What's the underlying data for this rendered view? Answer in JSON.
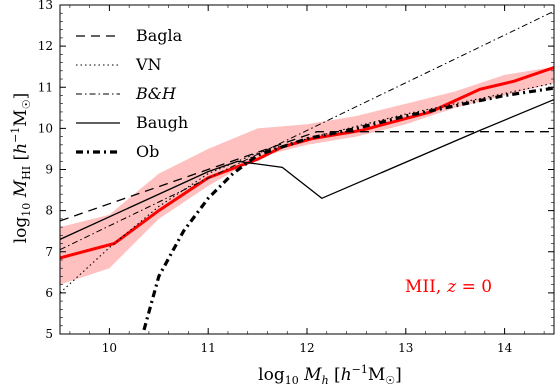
{
  "chart_data": {
    "type": "line",
    "title": "",
    "xlabel": "log10 Mh [h^-1 M☉]",
    "ylabel": "log10 MHI [h^-1 M☉]",
    "xlim": [
      9.5,
      14.5
    ],
    "ylim": [
      5,
      13
    ],
    "xticks": [
      "10",
      "11",
      "12",
      "13",
      "14"
    ],
    "yticks": [
      "5",
      "6",
      "7",
      "8",
      "9",
      "10",
      "11",
      "12",
      "13"
    ],
    "grid": false,
    "legend_position": "top-left",
    "annotation": {
      "text": "MII,",
      "math": "z = 0",
      "color": "#ff0000"
    },
    "band": {
      "color": "#ffc0c0",
      "x": [
        9.5,
        10.0,
        10.5,
        11.0,
        11.5,
        12.0,
        12.5,
        13.0,
        13.5,
        14.0,
        14.5
      ],
      "upper": [
        7.6,
        7.9,
        8.9,
        9.5,
        10.0,
        10.1,
        10.3,
        10.6,
        10.9,
        11.3,
        11.5
      ],
      "lower": [
        6.2,
        6.6,
        7.8,
        8.6,
        9.3,
        9.6,
        9.8,
        10.1,
        10.5,
        10.8,
        11.1
      ]
    },
    "series": [
      {
        "style": "solid-red-thick",
        "color": "#ff0000",
        "x": [
          9.5,
          10.05,
          10.5,
          11.0,
          11.5,
          11.75,
          12.05,
          12.55,
          13.25,
          13.75,
          14.1,
          14.5
        ],
        "y": [
          6.85,
          7.2,
          8.0,
          8.8,
          9.25,
          9.55,
          9.75,
          9.95,
          10.4,
          10.95,
          11.15,
          11.48
        ]
      },
      {
        "name": "Bagla",
        "style": "dashed",
        "color": "#000000",
        "x": [
          9.5,
          12.1,
          14.5
        ],
        "y": [
          7.75,
          9.92,
          9.92
        ]
      },
      {
        "name": "VN",
        "style": "dotted",
        "color": "#000000",
        "x": [
          9.5,
          10.0,
          10.5,
          11.0,
          11.5,
          12.0,
          12.5,
          13.0,
          13.5,
          14.0,
          14.5
        ],
        "y": [
          6.0,
          7.1,
          8.1,
          8.9,
          9.4,
          9.75,
          10.05,
          10.35,
          10.6,
          10.85,
          11.1
        ]
      },
      {
        "name": "B&H",
        "style": "dashdot",
        "color": "#000000",
        "x": [
          9.5,
          14.5
        ],
        "y": [
          7.05,
          12.85
        ]
      },
      {
        "name": "Baugh",
        "style": "solid",
        "color": "#000000",
        "x": [
          9.5,
          11.0,
          11.3,
          11.75,
          12.15,
          13.75,
          14.5
        ],
        "y": [
          7.3,
          8.95,
          9.2,
          9.05,
          8.3,
          9.95,
          10.7
        ]
      },
      {
        "name": "Ob",
        "style": "dashdot-thick",
        "color": "#000000",
        "x": [
          10.35,
          10.5,
          10.75,
          11.0,
          11.25,
          11.5,
          11.75,
          12.0,
          12.5,
          13.0,
          13.5,
          14.0,
          14.5
        ],
        "y": [
          5.1,
          6.4,
          7.5,
          8.3,
          8.9,
          9.35,
          9.55,
          9.75,
          10.0,
          10.3,
          10.55,
          10.8,
          10.98
        ]
      }
    ]
  }
}
